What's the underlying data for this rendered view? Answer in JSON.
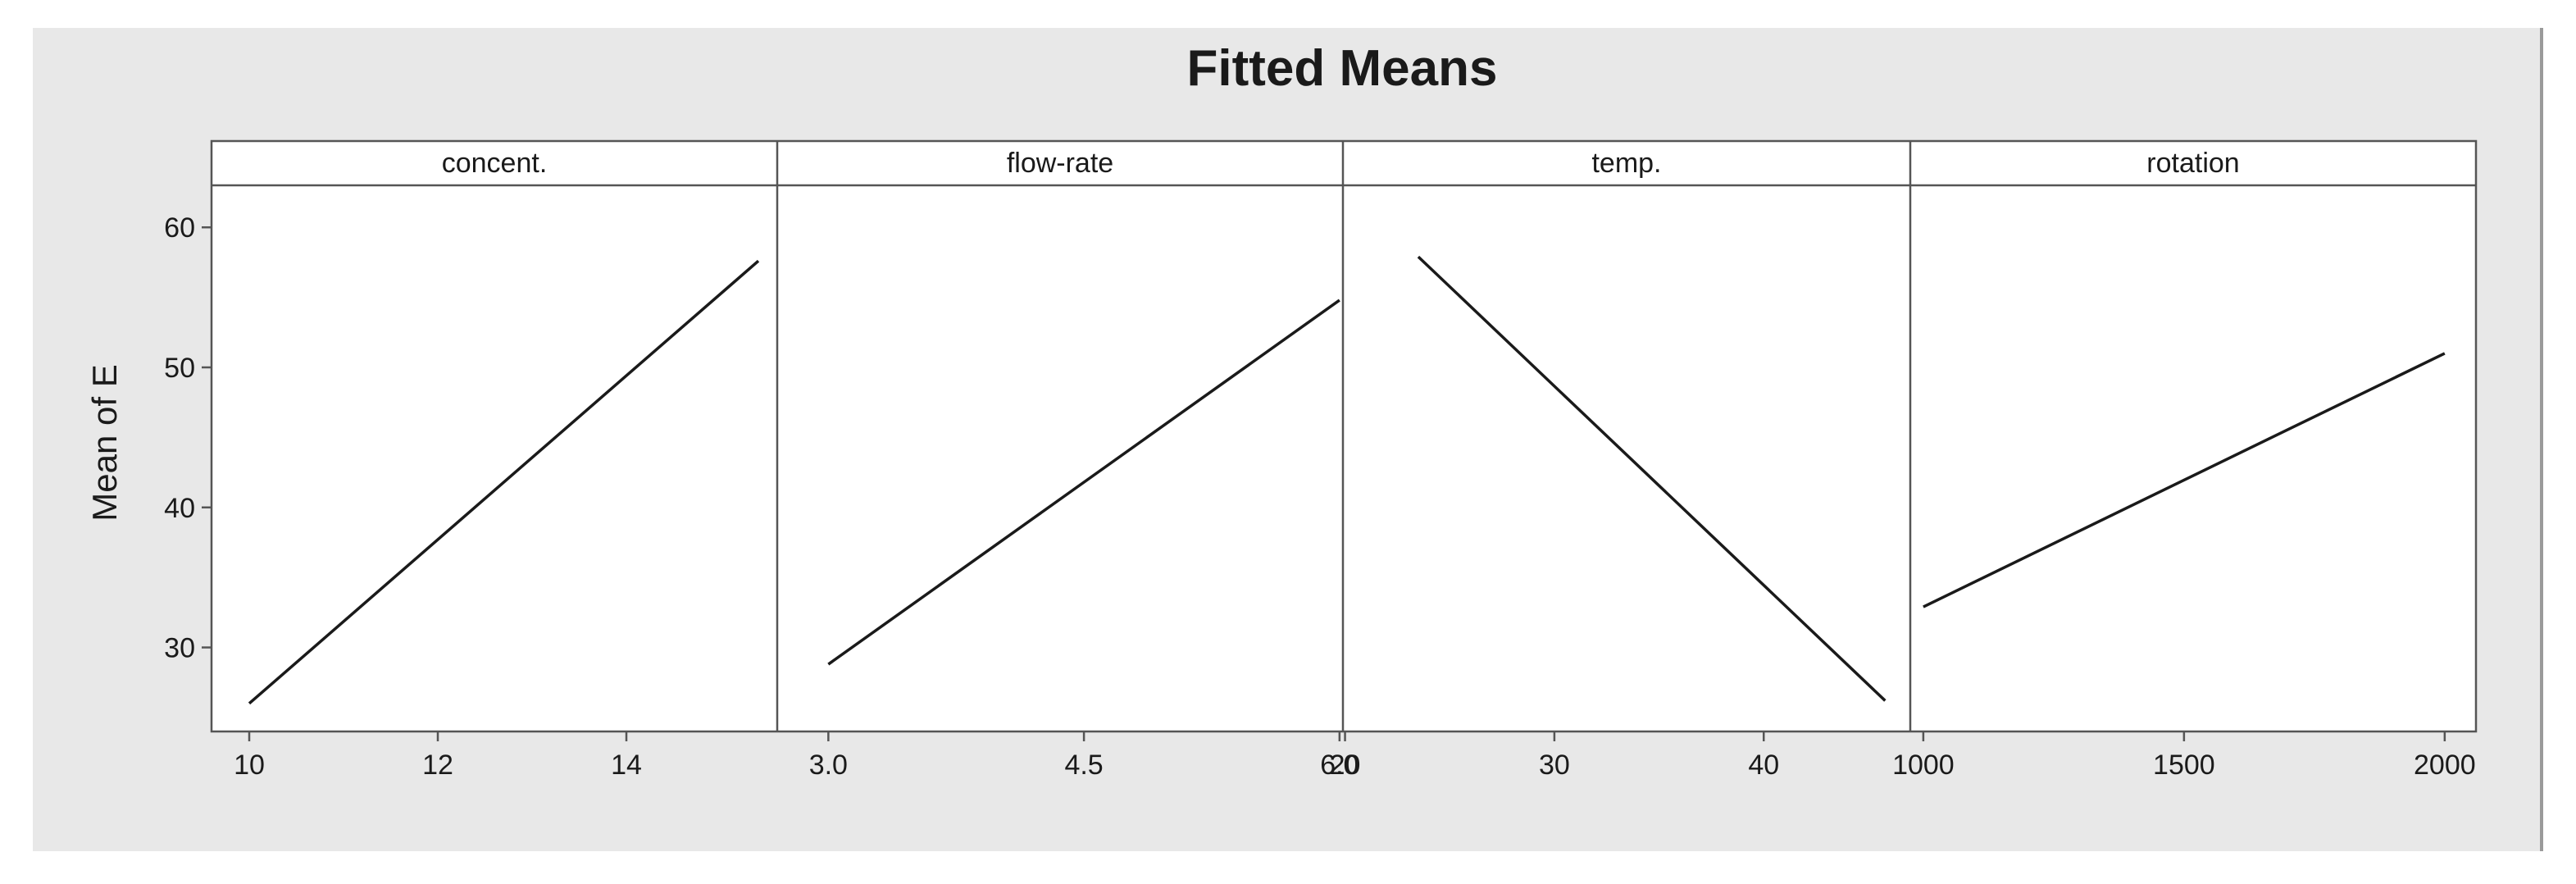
{
  "chart_data": {
    "type": "line",
    "title": "Fitted Means",
    "ylabel": "Mean of E",
    "ylim": [
      24,
      63
    ],
    "yticks": [
      30,
      40,
      50,
      60
    ],
    "line_color": "#1a1a1a",
    "panels": [
      {
        "label": "concent.",
        "xlim": [
          9.6,
          15.6
        ],
        "xticks": [
          10,
          12,
          14
        ],
        "xtick_labels": [
          "10",
          "12",
          "14"
        ],
        "x": [
          10,
          15.4
        ],
        "y": [
          26,
          57.6
        ]
      },
      {
        "label": "flow-rate",
        "xlim": [
          2.7,
          6.02
        ],
        "xticks": [
          3.0,
          4.5,
          6.0
        ],
        "xtick_labels": [
          "3.0",
          "4.5",
          "6.0"
        ],
        "x": [
          3.0,
          6.0
        ],
        "y": [
          28.8,
          54.8
        ]
      },
      {
        "label": "temp.",
        "xlim": [
          19.9,
          47.0
        ],
        "xticks": [
          20,
          30,
          40
        ],
        "xtick_labels": [
          "20",
          "30",
          "40"
        ],
        "x": [
          23.5,
          45.8
        ],
        "y": [
          57.9,
          26.2
        ]
      },
      {
        "label": "rotation",
        "xlim": [
          975,
          2060
        ],
        "xticks": [
          1000,
          1500,
          2000
        ],
        "xtick_labels": [
          "1000",
          "1500",
          "2000"
        ],
        "x": [
          1000,
          2000
        ],
        "y": [
          32.9,
          51
        ]
      }
    ]
  }
}
